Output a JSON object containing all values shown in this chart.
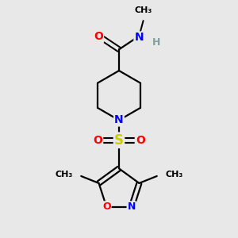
{
  "bg_color": "#e8e8e8",
  "bond_color": "#000000",
  "bond_width": 1.6,
  "atom_colors": {
    "O": "#ff0000",
    "N": "#0000ff",
    "S": "#cccc00",
    "H": "#7fa0a0",
    "C": "#000000"
  },
  "font_size": 10,
  "fig_size": [
    3.0,
    3.0
  ],
  "dpi": 100,
  "xlim": [
    0,
    10
  ],
  "ylim": [
    0,
    10
  ]
}
